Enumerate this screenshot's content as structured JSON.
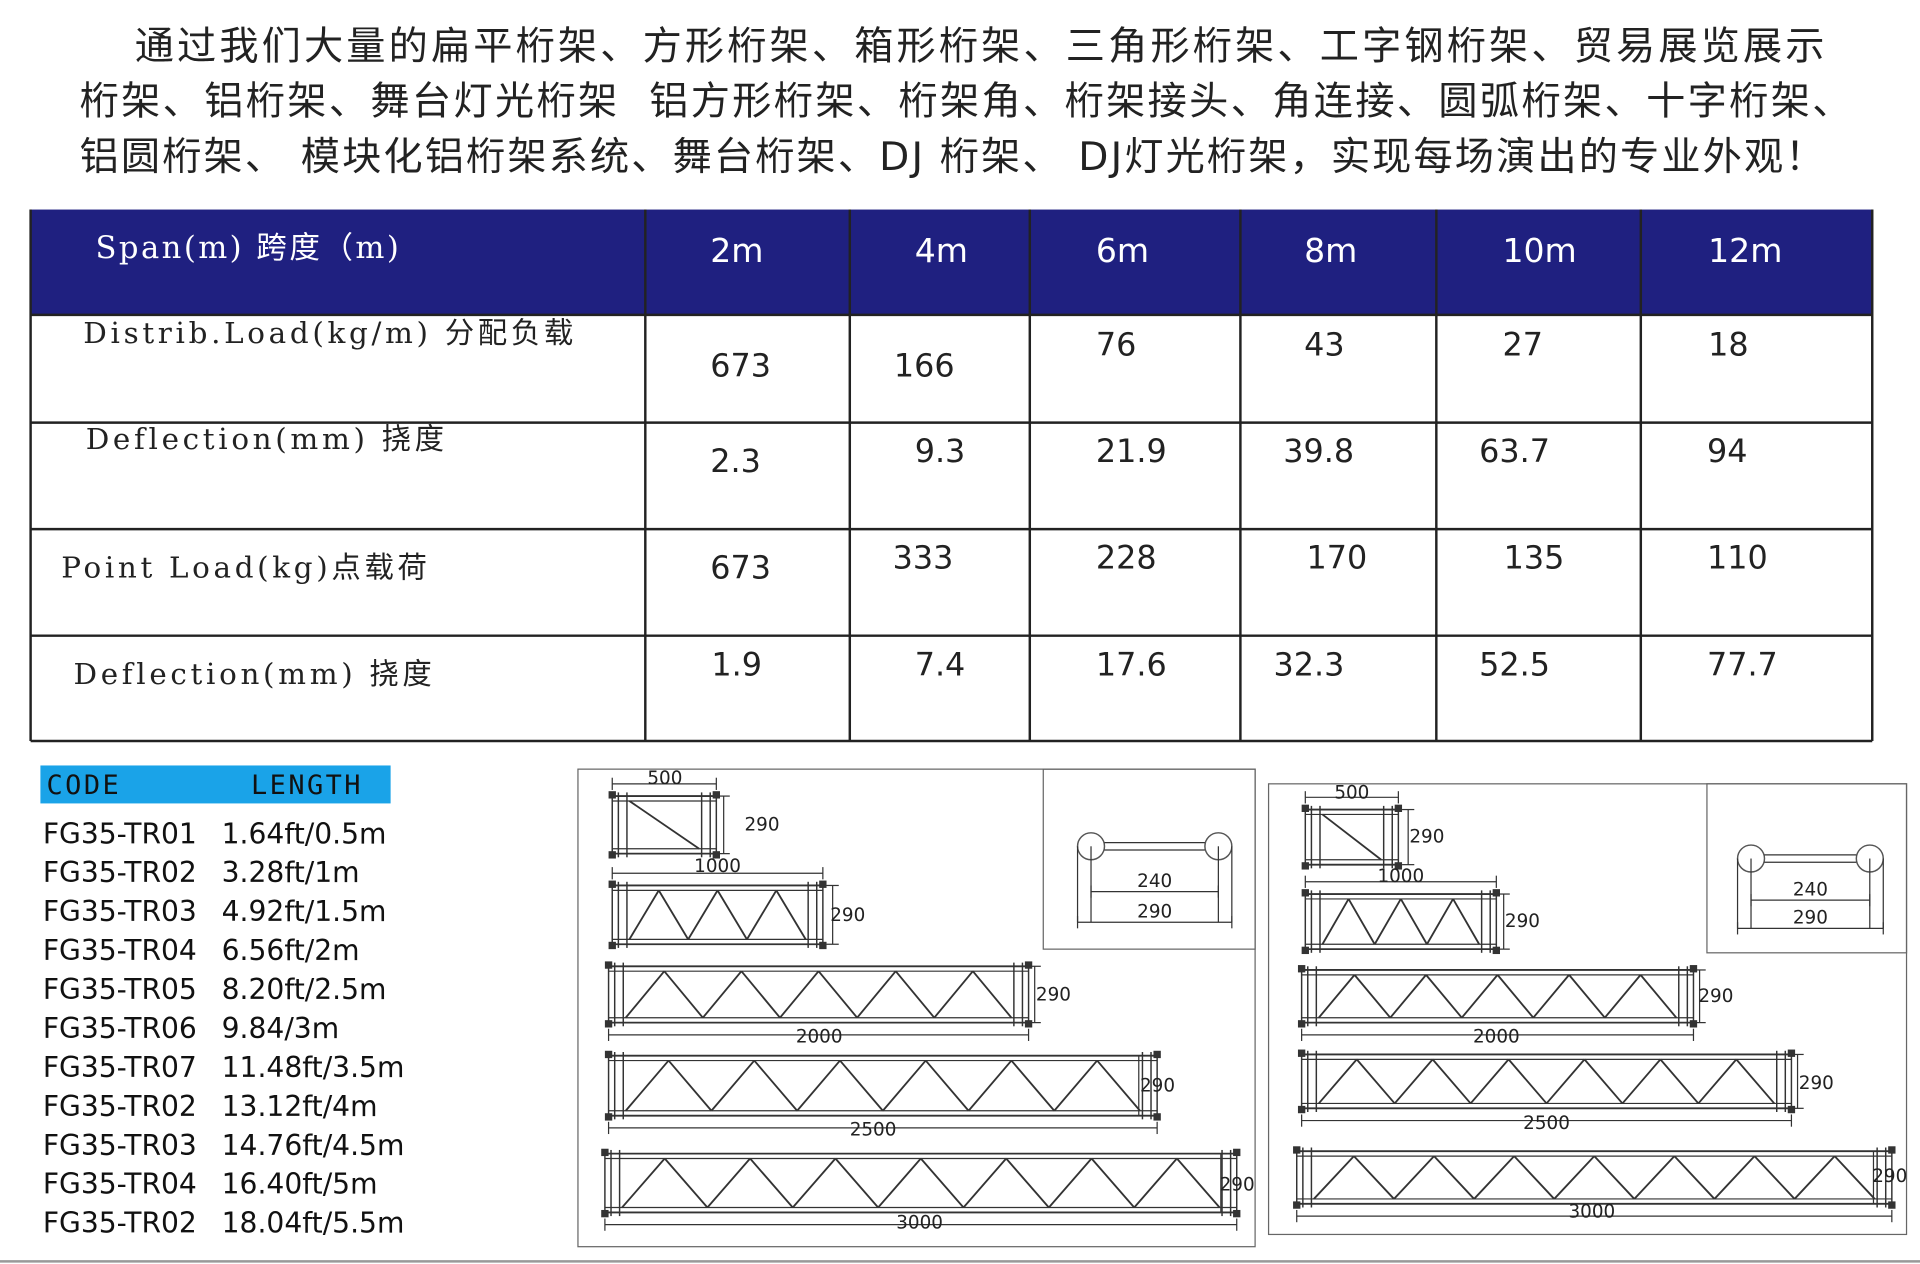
{
  "intro": {
    "lines": [
      "通过我们大量的扁平桁架、方形桁架、箱形桁架、三角形桁架、工字钢桁架、贸易展览展示",
      "桁架、铝桁架、舞台灯光桁架  铝方形桁架、桁架角、桁架接头、角连接、圆弧桁架、十字桁架、",
      "铝圆桁架、 模块化铝桁架系统、舞台桁架、DJ 桁架、 DJ灯光桁架，实现每场演出的专业外观！"
    ]
  },
  "table": {
    "header": [
      "Span(m) 跨度（m)",
      "2m",
      "4m",
      "6m",
      "8m",
      "10m",
      "12m"
    ],
    "rows": [
      [
        "Distrib.Load(kg/m) 分配负载",
        673,
        166,
        76,
        43,
        27,
        18
      ],
      [
        "Deflection(mm) 挠度",
        2.3,
        9.3,
        21.9,
        39.8,
        63.7,
        94
      ],
      [
        "Point Load(kg)点载荷",
        673,
        333,
        228,
        170,
        135,
        110
      ],
      [
        "Deflection(mm) 挠度",
        1.9,
        7.4,
        17.6,
        32.3,
        52.5,
        77.7
      ]
    ]
  },
  "code_list": {
    "header": [
      "CODE",
      "LENGTH"
    ],
    "items": [
      [
        "FG35-TR01",
        "1.64ft/0.5m"
      ],
      [
        "FG35-TR02",
        "3.28ft/1m"
      ],
      [
        "FG35-TR03",
        "4.92ft/1.5m"
      ],
      [
        "FG35-TR04",
        "6.56ft/2m"
      ],
      [
        "FG35-TR05",
        "8.20ft/2.5m"
      ],
      [
        "FG35-TR06",
        "9.84/3m"
      ],
      [
        "FG35-TR07",
        "11.48ft/3.5m"
      ],
      [
        "FG35-TR02",
        "13.12ft/4m"
      ],
      [
        "FG35-TR03",
        "14.76ft/4.5m"
      ],
      [
        "FG35-TR04",
        "16.40ft/5m"
      ],
      [
        "FG35-TR02",
        "18.04ft/5.5m"
      ]
    ]
  },
  "drawings": [
    {
      "trusses": [
        {
          "length": 500,
          "height": 290
        },
        {
          "length": 1000,
          "height": 290
        },
        {
          "length": 2000,
          "height": 290
        },
        {
          "length": 2500,
          "height": 290
        },
        {
          "length": 3000,
          "height": 290
        }
      ],
      "cross_section": {
        "inner": 240,
        "outer": 290
      }
    },
    {
      "trusses": [
        {
          "length": 500,
          "height": 290
        },
        {
          "length": 1000,
          "height": 290
        },
        {
          "length": 2000,
          "height": 290
        },
        {
          "length": 2500,
          "height": 290
        },
        {
          "length": 3000,
          "height": 290
        }
      ],
      "cross_section": {
        "inner": 240,
        "outer": 290
      }
    }
  ]
}
